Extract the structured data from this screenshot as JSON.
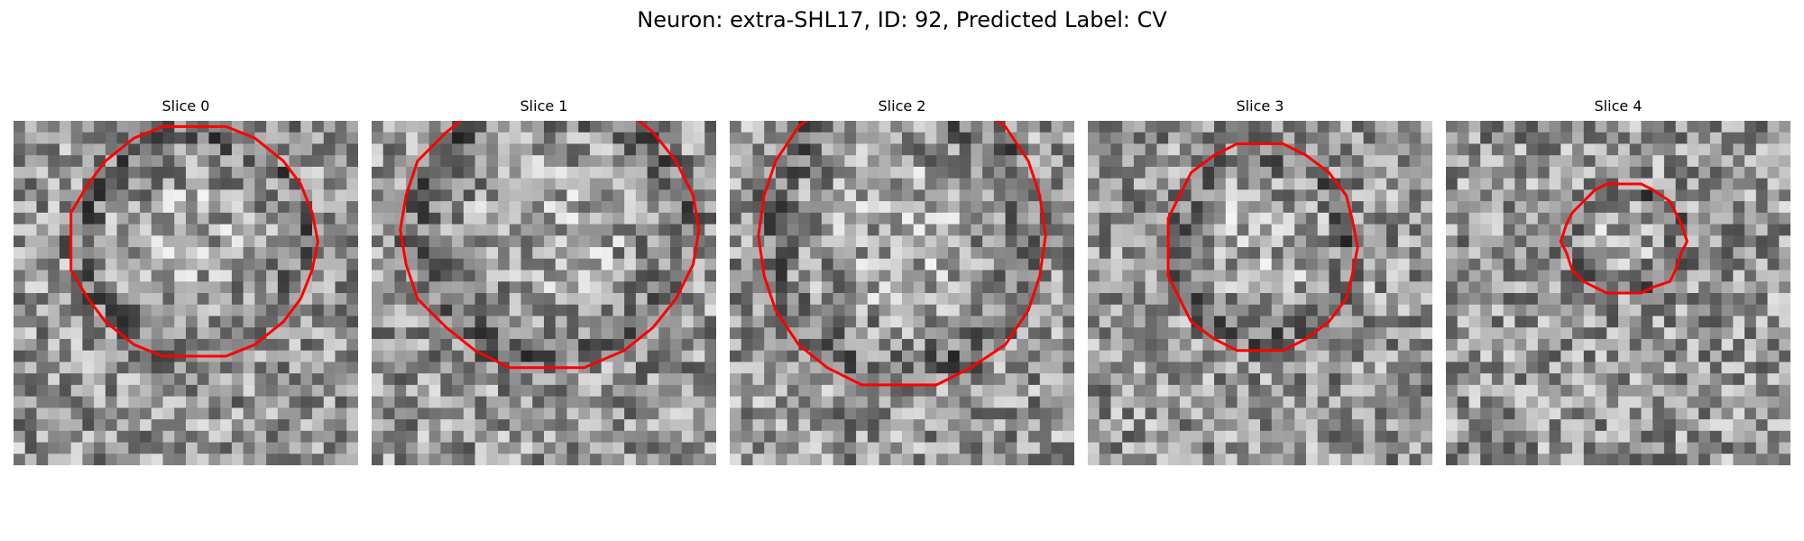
{
  "figure": {
    "title": "Neuron: extra-SHL17, ID: 92, Predicted Label: CV"
  },
  "panels": [
    {
      "title": "Slice 0",
      "seed": 17,
      "contour_scale": 0.92,
      "shape": "octagon"
    },
    {
      "title": "Slice 1",
      "seed": 29,
      "contour_scale": 1.0,
      "shape": "octagon"
    },
    {
      "title": "Slice 2",
      "seed": 41,
      "contour_scale": 1.0,
      "shape": "octagon"
    },
    {
      "title": "Slice 3",
      "seed": 53,
      "contour_scale": 0.85,
      "shape": "octagon"
    },
    {
      "title": "Slice 4",
      "seed": 67,
      "contour_scale": 0.55,
      "shape": "octagon"
    }
  ],
  "colors": {
    "contour": "#ff0000",
    "background": "#ffffff"
  },
  "image": {
    "colormap": "grayscale",
    "grid_cells": 30
  }
}
